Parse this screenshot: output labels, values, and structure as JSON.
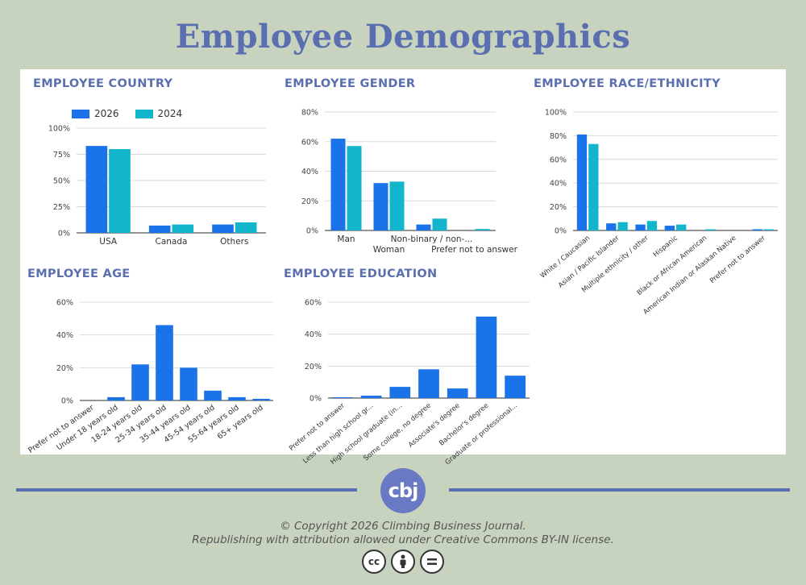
{
  "page": {
    "title": "Employee Demographics",
    "copyright_line1": "© Copyright 2026 Climbing Business Journal.",
    "copyright_line2": "Republishing with attribution allowed under Creative Commons BY-IN license.",
    "logo_text": "cbj",
    "license_icons": [
      "cc",
      "by",
      "nd"
    ]
  },
  "colors": {
    "series_2026": "#1a73e8",
    "series_2024": "#12b5cb",
    "accent": "#5a6fb0"
  },
  "chart_data": [
    {
      "id": "country",
      "title": "EMPLOYEE COUNTRY",
      "type": "bar",
      "categories": [
        "USA",
        "Canada",
        "Others"
      ],
      "series": [
        {
          "name": "2026",
          "values": [
            83,
            7,
            8
          ]
        },
        {
          "name": "2024",
          "values": [
            80,
            8,
            10
          ]
        }
      ],
      "ylim": [
        0,
        100
      ],
      "yticks": [
        "0%",
        "25%",
        "50%",
        "75%",
        "100%"
      ],
      "legend": "top",
      "grid": true
    },
    {
      "id": "gender",
      "title": "EMPLOYEE GENDER",
      "type": "bar",
      "categories": [
        "Man",
        "Woman",
        "Non-binary / non-...",
        "Prefer not to answer"
      ],
      "series": [
        {
          "values": [
            62,
            32,
            4,
            0
          ]
        },
        {
          "values": [
            57,
            33,
            8,
            1
          ]
        }
      ],
      "ylim": [
        0,
        80
      ],
      "yticks": [
        "0%",
        "20%",
        "40%",
        "60%",
        "80%"
      ],
      "grid": true
    },
    {
      "id": "race",
      "title": "EMPLOYEE RACE/ETHNICITY",
      "type": "bar",
      "categories": [
        "White / Caucasian",
        "Asian / Pacific Islander",
        "Multiple ethnicity / other",
        "Hispanic",
        "Black or African American",
        "American Indian or Alaskan Native",
        "Prefer not to answer"
      ],
      "series": [
        {
          "values": [
            81,
            6,
            5,
            4,
            0,
            0,
            1
          ]
        },
        {
          "values": [
            73,
            7,
            8,
            5,
            1,
            0,
            1
          ]
        }
      ],
      "ylim": [
        0,
        100
      ],
      "yticks": [
        "0%",
        "20%",
        "40%",
        "60%",
        "80%",
        "100%"
      ],
      "grid": true
    },
    {
      "id": "age",
      "title": "EMPLOYEE AGE",
      "type": "bar",
      "categories": [
        "Prefer not to answer",
        "Under 18 years old",
        "18-24 years old",
        "25-34 years old",
        "35-44 years old",
        "45-54 years old",
        "55-64 years old",
        "65+ years old"
      ],
      "series": [
        {
          "values": [
            0,
            2,
            22,
            46,
            20,
            6,
            2,
            1
          ]
        }
      ],
      "ylim": [
        0,
        60
      ],
      "yticks": [
        "0%",
        "20%",
        "40%",
        "60%"
      ],
      "grid": true
    },
    {
      "id": "education",
      "title": "EMPLOYEE EDUCATION",
      "type": "bar",
      "categories": [
        "Prefer not to answer",
        "Less than high school gr...",
        "High school graduate (in...",
        "Some college, no degree",
        "Associate's degree",
        "Bachelor's degree",
        "Graduate or professional..."
      ],
      "series": [
        {
          "values": [
            0.5,
            1.5,
            7,
            18,
            6,
            51,
            14
          ]
        }
      ],
      "ylim": [
        0,
        60
      ],
      "yticks": [
        "0%",
        "20%",
        "40%",
        "60%"
      ],
      "grid": true
    }
  ]
}
